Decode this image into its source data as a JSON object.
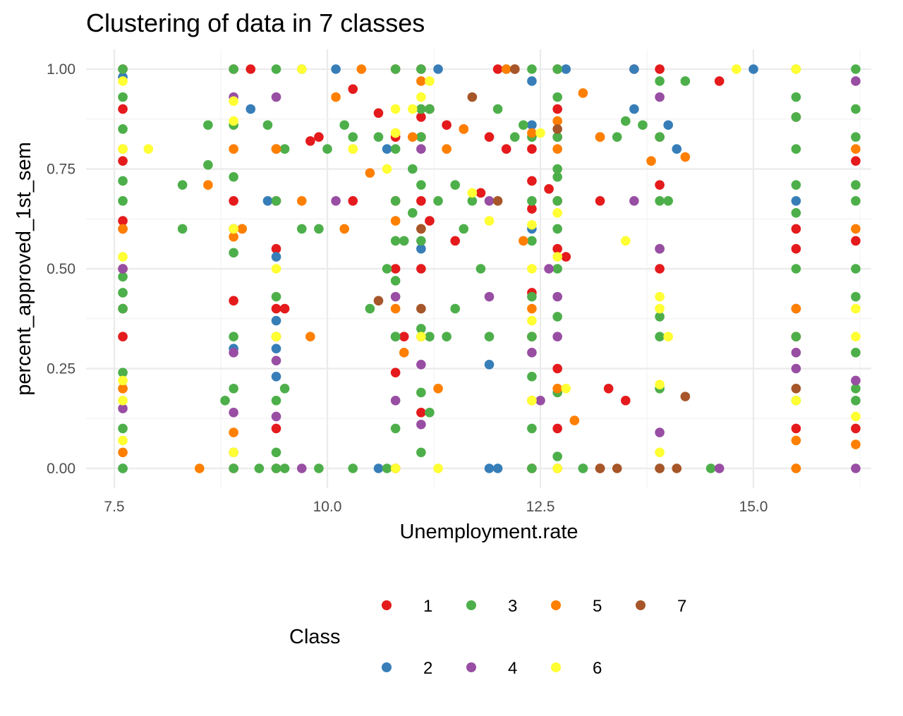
{
  "chart_data": {
    "type": "scatter",
    "title": "Clustering of data in 7 classes",
    "xlabel": "Unemployment.rate",
    "ylabel": "percent_approved_1st_sem",
    "xlim": [
      7.2,
      16.6
    ],
    "ylim": [
      -0.05,
      1.05
    ],
    "x_ticks": [
      7.5,
      10.0,
      12.5,
      15.0
    ],
    "x_tick_labels": [
      "7.5",
      "10.0",
      "12.5",
      "15.0"
    ],
    "y_ticks": [
      0.0,
      0.25,
      0.5,
      0.75,
      1.0
    ],
    "y_tick_labels": [
      "0.00",
      "0.25",
      "0.50",
      "0.75",
      "1.00"
    ],
    "grid": true,
    "legend": {
      "title": "Class",
      "placement": "bottom",
      "entries": [
        {
          "label": "1",
          "color": "#e41a1c"
        },
        {
          "label": "2",
          "color": "#377eb8"
        },
        {
          "label": "3",
          "color": "#4daf4a"
        },
        {
          "label": "4",
          "color": "#984ea3"
        },
        {
          "label": "5",
          "color": "#ff7f00"
        },
        {
          "label": "6",
          "color": "#ffff33"
        },
        {
          "label": "7",
          "color": "#a65628"
        }
      ]
    },
    "series": [
      {
        "name": "1",
        "color": "#e41a1c",
        "x": [
          7.6,
          7.6,
          7.6,
          7.6,
          7.6,
          7.6,
          7.6,
          7.6,
          8.9,
          8.9,
          8.9,
          8.9,
          8.9,
          9.4,
          9.4,
          9.4,
          9.4,
          9.4,
          9.4,
          9.5,
          9.8,
          9.9,
          9.1,
          10.3,
          10.3,
          10.6,
          10.8,
          10.8,
          10.8,
          10.8,
          10.8,
          10.8,
          10.9,
          11.1,
          11.1,
          11.1,
          11.1,
          11.1,
          11.1,
          11.1,
          11.2,
          11.2,
          11.4,
          11.5,
          11.6,
          11.8,
          11.9,
          12.1,
          12.2,
          12.4,
          12.4,
          12.4,
          12.4,
          12.4,
          12.4,
          12.6,
          12.7,
          12.7,
          12.7,
          12.7,
          12.7,
          12.7,
          12.7,
          12.7,
          12.8,
          13.2,
          13.2,
          13.5,
          13.6,
          13.9,
          13.9,
          13.9,
          13.9,
          14.6,
          15.5,
          15.5,
          15.5,
          15.5,
          15.5,
          16.2,
          16.2,
          16.2,
          12.0,
          13.3
        ],
        "y": [
          0.33,
          0.4,
          0.5,
          0.6,
          0.62,
          0.77,
          0.9,
          1.0,
          0.0,
          0.42,
          0.6,
          0.67,
          1.0,
          0.0,
          0.1,
          0.4,
          0.55,
          0.67,
          0.8,
          0.4,
          0.82,
          0.83,
          1.0,
          0.95,
          0.67,
          0.89,
          0.0,
          0.24,
          0.5,
          0.67,
          0.83,
          1.0,
          0.33,
          0.14,
          0.33,
          0.5,
          0.67,
          0.83,
          0.88,
          1.0,
          0.62,
          0.9,
          0.86,
          0.57,
          0.85,
          0.69,
          0.83,
          0.8,
          1.0,
          0.0,
          0.33,
          0.44,
          0.65,
          0.72,
          0.8,
          0.7,
          0.0,
          0.1,
          0.25,
          0.55,
          0.67,
          0.83,
          0.9,
          1.0,
          0.53,
          0.67,
          0.0,
          0.17,
          1.0,
          0.5,
          0.71,
          0.83,
          1.0,
          0.97,
          0.1,
          0.33,
          0.55,
          0.6,
          0.88,
          0.1,
          0.57,
          0.77,
          1.0,
          0.2
        ]
      },
      {
        "name": "2",
        "color": "#377eb8",
        "x": [
          7.6,
          7.6,
          8.9,
          9.1,
          9.3,
          9.4,
          9.4,
          9.4,
          9.7,
          10.1,
          10.6,
          10.7,
          10.8,
          11.1,
          11.3,
          11.9,
          11.9,
          12.4,
          12.4,
          12.4,
          12.8,
          13.0,
          13.6,
          13.6,
          14.0,
          14.1,
          15.0,
          15.5,
          12.0,
          9.4
        ],
        "y": [
          0.98,
          0.0,
          0.3,
          0.9,
          0.67,
          0.3,
          0.23,
          0.53,
          1.0,
          1.0,
          0.0,
          0.8,
          0.33,
          0.55,
          1.0,
          0.26,
          0.0,
          0.6,
          0.86,
          0.97,
          1.0,
          0.0,
          0.9,
          1.0,
          0.86,
          0.8,
          1.0,
          0.67,
          0.0,
          0.37
        ]
      },
      {
        "name": "3",
        "color": "#4daf4a",
        "x": [
          7.6,
          7.6,
          7.6,
          7.6,
          7.6,
          7.6,
          7.6,
          7.6,
          7.6,
          7.6,
          7.6,
          7.6,
          8.3,
          8.3,
          8.6,
          8.6,
          8.8,
          8.9,
          8.9,
          8.9,
          8.9,
          8.9,
          8.9,
          8.9,
          8.9,
          9.0,
          9.2,
          9.3,
          9.4,
          9.4,
          9.4,
          9.4,
          9.4,
          9.4,
          9.4,
          9.4,
          9.5,
          9.5,
          9.5,
          9.7,
          9.9,
          9.9,
          10.0,
          10.2,
          10.3,
          10.3,
          10.5,
          10.6,
          10.7,
          10.7,
          10.8,
          10.8,
          10.8,
          10.8,
          10.8,
          10.8,
          10.8,
          10.9,
          11.0,
          11.0,
          11.1,
          11.1,
          11.1,
          11.1,
          11.1,
          11.1,
          11.1,
          11.1,
          11.2,
          11.2,
          11.2,
          11.3,
          11.4,
          11.5,
          11.5,
          11.6,
          11.7,
          11.8,
          11.9,
          12.0,
          12.1,
          12.2,
          12.3,
          12.4,
          12.4,
          12.4,
          12.4,
          12.4,
          12.4,
          12.4,
          12.4,
          12.4,
          12.7,
          12.7,
          12.7,
          12.7,
          12.7,
          12.7,
          12.7,
          12.7,
          12.7,
          12.7,
          12.7,
          13.0,
          13.4,
          13.5,
          13.7,
          13.9,
          13.9,
          13.9,
          13.9,
          13.9,
          13.9,
          13.9,
          13.9,
          14.0,
          14.2,
          14.5,
          15.5,
          15.5,
          15.5,
          15.5,
          15.5,
          15.5,
          15.5,
          15.5,
          15.5,
          15.5,
          16.2,
          16.2,
          16.2,
          16.2,
          16.2,
          16.2,
          16.2,
          16.2,
          16.2,
          16.2
        ],
        "y": [
          0.0,
          0.1,
          0.2,
          0.24,
          0.4,
          0.44,
          0.48,
          0.67,
          0.72,
          0.85,
          0.93,
          1.0,
          0.6,
          0.71,
          0.76,
          0.86,
          0.17,
          0.0,
          0.2,
          0.33,
          0.54,
          0.6,
          0.73,
          0.86,
          1.0,
          0.6,
          0.0,
          0.86,
          0.0,
          0.04,
          0.17,
          0.33,
          0.43,
          0.67,
          0.8,
          1.0,
          0.2,
          0.8,
          0.0,
          0.6,
          0.6,
          0.0,
          0.8,
          0.86,
          0.83,
          0.0,
          0.4,
          0.83,
          0.0,
          0.5,
          0.1,
          0.33,
          0.47,
          0.57,
          0.67,
          0.8,
          1.0,
          0.57,
          0.64,
          0.75,
          0.04,
          0.19,
          0.35,
          0.57,
          0.71,
          0.83,
          0.9,
          1.0,
          0.14,
          0.33,
          0.9,
          0.67,
          0.33,
          0.4,
          0.71,
          0.6,
          0.67,
          0.5,
          0.33,
          0.9,
          1.0,
          0.83,
          0.86,
          0.0,
          0.1,
          0.23,
          0.33,
          0.43,
          0.57,
          0.67,
          0.83,
          1.0,
          0.03,
          0.19,
          0.38,
          0.5,
          0.6,
          0.73,
          0.83,
          0.93,
          1.0,
          0.75,
          0.67,
          0.0,
          0.83,
          0.87,
          0.86,
          0.0,
          0.2,
          0.33,
          0.38,
          0.55,
          0.67,
          0.83,
          0.97,
          0.67,
          0.97,
          0.0,
          0.0,
          0.17,
          0.33,
          0.5,
          0.64,
          0.71,
          0.8,
          0.88,
          0.93,
          1.0,
          0.17,
          0.2,
          0.29,
          0.43,
          0.5,
          0.67,
          0.71,
          0.83,
          0.9,
          1.0
        ]
      },
      {
        "name": "4",
        "color": "#984ea3",
        "x": [
          7.6,
          7.6,
          8.9,
          8.9,
          8.9,
          8.9,
          9.4,
          9.4,
          9.4,
          9.7,
          10.1,
          10.8,
          10.8,
          11.1,
          11.1,
          11.1,
          11.9,
          11.9,
          12.4,
          12.5,
          12.6,
          12.7,
          12.7,
          13.2,
          13.6,
          13.9,
          13.9,
          13.9,
          14.6,
          15.5,
          15.5,
          15.5,
          16.2,
          16.2,
          16.2
        ],
        "y": [
          0.5,
          0.15,
          0.04,
          0.14,
          0.29,
          0.93,
          0.13,
          0.27,
          0.93,
          0.0,
          0.67,
          0.43,
          0.17,
          0.11,
          0.26,
          0.8,
          0.67,
          0.43,
          0.29,
          0.17,
          0.5,
          0.33,
          0.43,
          0.83,
          0.67,
          0.09,
          0.55,
          0.93,
          0.0,
          0.25,
          0.29,
          0.4,
          0.0,
          0.22,
          0.97
        ]
      },
      {
        "name": "5",
        "color": "#ff7f00",
        "x": [
          7.6,
          7.6,
          7.6,
          7.6,
          8.5,
          8.6,
          8.9,
          8.9,
          8.9,
          9.0,
          9.4,
          9.4,
          9.7,
          9.8,
          10.1,
          10.2,
          10.3,
          10.5,
          10.8,
          10.8,
          10.8,
          10.9,
          11.0,
          11.1,
          11.1,
          11.3,
          11.4,
          11.6,
          12.3,
          12.4,
          12.4,
          12.4,
          12.7,
          12.7,
          12.7,
          12.9,
          13.0,
          13.2,
          13.8,
          14.2,
          15.5,
          15.5,
          15.5,
          16.2,
          16.2,
          16.2,
          12.1,
          10.4
        ],
        "y": [
          0.04,
          0.2,
          0.6,
          0.8,
          0.0,
          0.71,
          0.09,
          0.58,
          0.8,
          0.6,
          0.8,
          0.33,
          0.67,
          0.33,
          0.93,
          0.6,
          0.8,
          0.74,
          0.4,
          0.62,
          0.84,
          0.29,
          0.83,
          0.6,
          0.97,
          0.2,
          0.8,
          0.85,
          0.57,
          0.17,
          0.4,
          0.84,
          0.2,
          0.8,
          0.87,
          0.12,
          0.94,
          0.83,
          0.77,
          0.78,
          0.07,
          0.4,
          0.0,
          0.06,
          0.6,
          0.8,
          1.0,
          1.0
        ]
      },
      {
        "name": "6",
        "color": "#ffff33",
        "x": [
          7.6,
          7.6,
          7.6,
          7.6,
          7.6,
          7.6,
          7.9,
          8.9,
          8.9,
          8.9,
          8.9,
          9.4,
          9.4,
          10.3,
          10.7,
          10.8,
          10.8,
          10.8,
          11.0,
          11.1,
          11.1,
          11.2,
          11.3,
          11.7,
          11.9,
          12.4,
          12.4,
          12.4,
          12.4,
          12.5,
          12.7,
          12.7,
          12.7,
          12.8,
          13.5,
          13.9,
          13.9,
          13.9,
          13.9,
          14.0,
          15.5,
          15.5,
          16.2,
          16.2,
          16.2,
          9.7,
          14.8
        ],
        "y": [
          0.07,
          0.17,
          0.22,
          0.53,
          0.8,
          0.97,
          0.8,
          0.04,
          0.6,
          0.87,
          0.92,
          0.33,
          0.5,
          0.8,
          0.75,
          0.0,
          0.84,
          0.9,
          0.9,
          0.33,
          0.93,
          0.97,
          0.0,
          0.69,
          0.62,
          0.17,
          0.37,
          0.5,
          0.61,
          0.84,
          0.0,
          0.53,
          0.64,
          0.2,
          0.57,
          0.04,
          0.21,
          0.4,
          0.43,
          0.33,
          0.17,
          1.0,
          0.13,
          0.33,
          0.4,
          1.0,
          1.0
        ]
      },
      {
        "name": "7",
        "color": "#a65628",
        "x": [
          10.6,
          11.1,
          11.1,
          11.7,
          12.0,
          12.2,
          13.2,
          13.4,
          13.9,
          14.1,
          14.2,
          15.5,
          12.7
        ],
        "y": [
          0.42,
          0.4,
          0.6,
          0.93,
          0.67,
          1.0,
          0.0,
          0.0,
          0.0,
          0.0,
          0.18,
          0.2,
          0.85
        ]
      }
    ]
  }
}
